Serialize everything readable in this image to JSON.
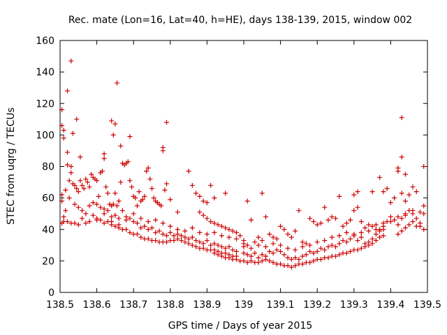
{
  "chart_data": {
    "type": "scatter",
    "title": "Rec. mate (Lon=16, Lat=40, h=HE), days 138-139, 2015, window 002",
    "xlabel": "GPS time / Days of year 2015",
    "ylabel": "STEC from uqrg / TECUs",
    "xlim": [
      138.5,
      139.5
    ],
    "ylim": [
      0,
      160
    ],
    "x_ticks": [
      "138.5",
      "138.6",
      "138.7",
      "138.8",
      "138.9",
      "139",
      "139.1",
      "139.2",
      "139.3",
      "139.4",
      "139.5"
    ],
    "y_ticks": [
      "0",
      "20",
      "40",
      "60",
      "80",
      "100",
      "120",
      "140",
      "160"
    ],
    "grid": false,
    "marker": "+",
    "color": "#cc0000",
    "points": [
      [
        138.505,
        116
      ],
      [
        138.505,
        106
      ],
      [
        138.51,
        103
      ],
      [
        138.51,
        98
      ],
      [
        138.52,
        128
      ],
      [
        138.53,
        147
      ],
      [
        138.535,
        101
      ],
      [
        138.545,
        110
      ],
      [
        138.555,
        86
      ],
      [
        138.64,
        109
      ],
      [
        138.645,
        100
      ],
      [
        138.65,
        107
      ],
      [
        138.655,
        133
      ],
      [
        138.665,
        93
      ],
      [
        138.69,
        99
      ],
      [
        138.78,
        92
      ],
      [
        138.78,
        90
      ],
      [
        138.79,
        108
      ],
      [
        139.43,
        111
      ],
      [
        139.43,
        86
      ],
      [
        139.44,
        75
      ],
      [
        139.49,
        80
      ],
      [
        138.505,
        62
      ],
      [
        138.505,
        58
      ],
      [
        138.51,
        45
      ],
      [
        138.515,
        65
      ],
      [
        138.515,
        52
      ],
      [
        138.52,
        89
      ],
      [
        138.52,
        81
      ],
      [
        138.525,
        71
      ],
      [
        138.525,
        60
      ],
      [
        138.53,
        80
      ],
      [
        138.53,
        76
      ],
      [
        138.535,
        69
      ],
      [
        138.54,
        68
      ],
      [
        138.545,
        66
      ],
      [
        138.55,
        64
      ],
      [
        138.555,
        71
      ],
      [
        138.56,
        68
      ],
      [
        138.565,
        66
      ],
      [
        138.57,
        72
      ],
      [
        138.575,
        70
      ],
      [
        138.58,
        67
      ],
      [
        138.585,
        75
      ],
      [
        138.59,
        73
      ],
      [
        138.595,
        72
      ],
      [
        138.6,
        71
      ],
      [
        138.605,
        61
      ],
      [
        138.61,
        76
      ],
      [
        138.615,
        77
      ],
      [
        138.62,
        88
      ],
      [
        138.62,
        85
      ],
      [
        138.625,
        67
      ],
      [
        138.63,
        63
      ],
      [
        138.635,
        56
      ],
      [
        138.64,
        55
      ],
      [
        138.645,
        56
      ],
      [
        138.65,
        63
      ],
      [
        138.655,
        55
      ],
      [
        138.66,
        58
      ],
      [
        138.665,
        70
      ],
      [
        138.67,
        82
      ],
      [
        138.675,
        81
      ],
      [
        138.68,
        82
      ],
      [
        138.685,
        83
      ],
      [
        138.69,
        71
      ],
      [
        138.695,
        67
      ],
      [
        138.7,
        61
      ],
      [
        138.705,
        60
      ],
      [
        138.71,
        55
      ],
      [
        138.715,
        64
      ],
      [
        138.72,
        58
      ],
      [
        138.725,
        59
      ],
      [
        138.73,
        61
      ],
      [
        138.735,
        77
      ],
      [
        138.74,
        79
      ],
      [
        138.745,
        72
      ],
      [
        138.75,
        66
      ],
      [
        138.755,
        60
      ],
      [
        138.76,
        58
      ],
      [
        138.765,
        57
      ],
      [
        138.77,
        56
      ],
      [
        138.775,
        55
      ],
      [
        138.785,
        65
      ],
      [
        138.79,
        69
      ],
      [
        138.8,
        59
      ],
      [
        138.82,
        51
      ],
      [
        138.85,
        77
      ],
      [
        138.86,
        68
      ],
      [
        138.87,
        63
      ],
      [
        138.88,
        61
      ],
      [
        138.89,
        58
      ],
      [
        138.9,
        57
      ],
      [
        138.91,
        68
      ],
      [
        138.92,
        60
      ],
      [
        138.95,
        63
      ],
      [
        139.01,
        58
      ],
      [
        139.05,
        63
      ],
      [
        139.3,
        62
      ],
      [
        139.31,
        64
      ],
      [
        139.35,
        64
      ],
      [
        139.37,
        73
      ],
      [
        139.38,
        64
      ],
      [
        139.39,
        66
      ],
      [
        139.4,
        57
      ],
      [
        139.41,
        60
      ],
      [
        139.42,
        79
      ],
      [
        139.42,
        77
      ],
      [
        139.43,
        63
      ],
      [
        139.44,
        58
      ],
      [
        139.45,
        62
      ],
      [
        139.46,
        67
      ],
      [
        139.47,
        64
      ],
      [
        139.48,
        51
      ],
      [
        139.49,
        55
      ],
      [
        138.505,
        44
      ],
      [
        138.51,
        48
      ],
      [
        138.52,
        45
      ],
      [
        138.53,
        44
      ],
      [
        138.54,
        44
      ],
      [
        138.55,
        43
      ],
      [
        138.56,
        47
      ],
      [
        138.57,
        44
      ],
      [
        138.58,
        45
      ],
      [
        138.59,
        49
      ],
      [
        138.6,
        47
      ],
      [
        138.61,
        46
      ],
      [
        138.62,
        53
      ],
      [
        138.63,
        45
      ],
      [
        138.64,
        43
      ],
      [
        138.65,
        42
      ],
      [
        138.66,
        41
      ],
      [
        138.67,
        40
      ],
      [
        138.68,
        40
      ],
      [
        138.69,
        38
      ],
      [
        138.7,
        37
      ],
      [
        138.71,
        37
      ],
      [
        138.72,
        35
      ],
      [
        138.73,
        34
      ],
      [
        138.74,
        34
      ],
      [
        138.75,
        33
      ],
      [
        138.76,
        33
      ],
      [
        138.77,
        32
      ],
      [
        138.78,
        32
      ],
      [
        138.79,
        32
      ],
      [
        138.8,
        33
      ],
      [
        138.81,
        33
      ],
      [
        138.82,
        34
      ],
      [
        138.83,
        33
      ],
      [
        138.84,
        32
      ],
      [
        138.85,
        31
      ],
      [
        138.86,
        30
      ],
      [
        138.87,
        29
      ],
      [
        138.88,
        28
      ],
      [
        138.89,
        28
      ],
      [
        138.9,
        27
      ],
      [
        138.91,
        27
      ],
      [
        138.92,
        27
      ],
      [
        138.93,
        26
      ],
      [
        138.94,
        25
      ],
      [
        138.95,
        25
      ],
      [
        138.96,
        24
      ],
      [
        138.97,
        23
      ],
      [
        138.98,
        23
      ],
      [
        138.54,
        56
      ],
      [
        138.55,
        54
      ],
      [
        138.56,
        52
      ],
      [
        138.57,
        50
      ],
      [
        138.58,
        55
      ],
      [
        138.59,
        57
      ],
      [
        138.6,
        56
      ],
      [
        138.61,
        54
      ],
      [
        138.62,
        50
      ],
      [
        138.63,
        52
      ],
      [
        138.64,
        48
      ],
      [
        138.65,
        49
      ],
      [
        138.66,
        47
      ],
      [
        138.67,
        52
      ],
      [
        138.68,
        46
      ],
      [
        138.69,
        47
      ],
      [
        138.7,
        45
      ],
      [
        138.71,
        44
      ],
      [
        138.72,
        41
      ],
      [
        138.73,
        42
      ],
      [
        138.74,
        40
      ],
      [
        138.75,
        41
      ],
      [
        138.76,
        38
      ],
      [
        138.77,
        39
      ],
      [
        138.78,
        37
      ],
      [
        138.79,
        36
      ],
      [
        138.8,
        38
      ],
      [
        138.81,
        36
      ],
      [
        138.82,
        37
      ],
      [
        138.83,
        36
      ],
      [
        138.84,
        35
      ],
      [
        138.85,
        34
      ],
      [
        138.86,
        35
      ],
      [
        138.87,
        33
      ],
      [
        138.88,
        32
      ],
      [
        138.89,
        31
      ],
      [
        138.9,
        33
      ],
      [
        138.91,
        30
      ],
      [
        138.92,
        31
      ],
      [
        138.93,
        30
      ],
      [
        138.94,
        29
      ],
      [
        138.95,
        28
      ],
      [
        138.96,
        29
      ],
      [
        138.97,
        27
      ],
      [
        138.98,
        26
      ],
      [
        138.6,
        46
      ],
      [
        138.62,
        44
      ],
      [
        138.64,
        45
      ],
      [
        138.66,
        43
      ],
      [
        138.68,
        48
      ],
      [
        138.7,
        50
      ],
      [
        138.72,
        47
      ],
      [
        138.74,
        45
      ],
      [
        138.76,
        46
      ],
      [
        138.78,
        44
      ],
      [
        138.8,
        42
      ],
      [
        138.82,
        40
      ],
      [
        138.84,
        39
      ],
      [
        138.86,
        41
      ],
      [
        138.88,
        38
      ],
      [
        138.9,
        37
      ],
      [
        138.92,
        38
      ],
      [
        138.94,
        36
      ],
      [
        138.96,
        35
      ],
      [
        138.98,
        34
      ],
      [
        139.0,
        33
      ],
      [
        138.88,
        51
      ],
      [
        138.89,
        49
      ],
      [
        138.9,
        47
      ],
      [
        138.91,
        45
      ],
      [
        138.92,
        44
      ],
      [
        138.93,
        43
      ],
      [
        138.94,
        42
      ],
      [
        138.95,
        41
      ],
      [
        138.96,
        40
      ],
      [
        138.97,
        39
      ],
      [
        138.98,
        38
      ],
      [
        138.99,
        36
      ],
      [
        139.0,
        31
      ],
      [
        139.01,
        30
      ],
      [
        139.02,
        46
      ],
      [
        139.03,
        32
      ],
      [
        139.04,
        35
      ],
      [
        139.05,
        33
      ],
      [
        139.06,
        48
      ],
      [
        139.07,
        37
      ],
      [
        139.08,
        35
      ],
      [
        139.09,
        34
      ],
      [
        139.1,
        42
      ],
      [
        139.11,
        40
      ],
      [
        139.12,
        37
      ],
      [
        139.13,
        35
      ],
      [
        139.14,
        39
      ],
      [
        139.15,
        52
      ],
      [
        139.16,
        32
      ],
      [
        139.17,
        31
      ],
      [
        139.18,
        47
      ],
      [
        139.19,
        45
      ],
      [
        139.2,
        43
      ],
      [
        139.21,
        44
      ],
      [
        139.22,
        54
      ],
      [
        139.23,
        46
      ],
      [
        139.24,
        48
      ],
      [
        139.25,
        47
      ],
      [
        139.26,
        61
      ],
      [
        139.27,
        42
      ],
      [
        139.28,
        44
      ],
      [
        139.29,
        46
      ],
      [
        139.3,
        52
      ],
      [
        139.31,
        54
      ],
      [
        139.32,
        45
      ],
      [
        139.33,
        41
      ],
      [
        139.34,
        43
      ],
      [
        139.35,
        42
      ],
      [
        139.36,
        40
      ],
      [
        139.37,
        39
      ],
      [
        139.38,
        42
      ],
      [
        139.39,
        45
      ],
      [
        139.4,
        48
      ],
      [
        139.41,
        46
      ],
      [
        139.42,
        43
      ],
      [
        139.43,
        47
      ],
      [
        139.44,
        49
      ],
      [
        139.45,
        52
      ],
      [
        139.46,
        50
      ],
      [
        139.47,
        47
      ],
      [
        139.48,
        42
      ],
      [
        139.49,
        40
      ],
      [
        139.0,
        20
      ],
      [
        139.01,
        19
      ],
      [
        139.02,
        20
      ],
      [
        139.03,
        19
      ],
      [
        139.04,
        19
      ],
      [
        139.05,
        20
      ],
      [
        139.06,
        21
      ],
      [
        139.07,
        20
      ],
      [
        139.08,
        19
      ],
      [
        139.09,
        18
      ],
      [
        139.1,
        18
      ],
      [
        139.11,
        17
      ],
      [
        139.12,
        17
      ],
      [
        139.13,
        16
      ],
      [
        139.14,
        17
      ],
      [
        139.15,
        18
      ],
      [
        139.16,
        18
      ],
      [
        139.17,
        19
      ],
      [
        139.18,
        19
      ],
      [
        139.19,
        20
      ],
      [
        139.2,
        21
      ],
      [
        139.21,
        21
      ],
      [
        139.22,
        22
      ],
      [
        139.23,
        22
      ],
      [
        139.24,
        23
      ],
      [
        139.25,
        23
      ],
      [
        139.26,
        24
      ],
      [
        139.27,
        25
      ],
      [
        139.28,
        25
      ],
      [
        139.29,
        26
      ],
      [
        139.3,
        27
      ],
      [
        139.31,
        27
      ],
      [
        139.32,
        28
      ],
      [
        139.33,
        29
      ],
      [
        139.34,
        30
      ],
      [
        139.35,
        31
      ],
      [
        139.36,
        33
      ],
      [
        139.37,
        35
      ],
      [
        139.38,
        36
      ],
      [
        139.0,
        25
      ],
      [
        139.01,
        24
      ],
      [
        139.02,
        23
      ],
      [
        139.03,
        25
      ],
      [
        139.04,
        22
      ],
      [
        139.05,
        24
      ],
      [
        139.06,
        23
      ],
      [
        139.07,
        26
      ],
      [
        139.08,
        25
      ],
      [
        139.09,
        27
      ],
      [
        139.1,
        26
      ],
      [
        139.11,
        24
      ],
      [
        139.12,
        22
      ],
      [
        139.13,
        21
      ],
      [
        139.14,
        22
      ],
      [
        139.15,
        21
      ],
      [
        139.16,
        23
      ],
      [
        139.17,
        24
      ],
      [
        139.18,
        26
      ],
      [
        139.19,
        25
      ],
      [
        139.2,
        26
      ],
      [
        139.21,
        28
      ],
      [
        139.22,
        27
      ],
      [
        139.23,
        29
      ],
      [
        139.24,
        30
      ],
      [
        139.25,
        29
      ],
      [
        139.26,
        31
      ],
      [
        139.27,
        33
      ],
      [
        139.28,
        32
      ],
      [
        139.29,
        34
      ],
      [
        139.3,
        36
      ],
      [
        139.31,
        33
      ],
      [
        139.32,
        35
      ],
      [
        139.33,
        31
      ],
      [
        139.34,
        32
      ],
      [
        139.35,
        34
      ],
      [
        139.36,
        37
      ],
      [
        139.37,
        40
      ],
      [
        139.38,
        40
      ],
      [
        139.0,
        29
      ],
      [
        139.02,
        28
      ],
      [
        139.04,
        30
      ],
      [
        139.06,
        29
      ],
      [
        139.08,
        31
      ],
      [
        139.1,
        30
      ],
      [
        139.12,
        28
      ],
      [
        139.14,
        27
      ],
      [
        139.16,
        29
      ],
      [
        139.18,
        30
      ],
      [
        139.2,
        32
      ],
      [
        139.22,
        33
      ],
      [
        139.24,
        35
      ],
      [
        139.26,
        36
      ],
      [
        139.28,
        38
      ],
      [
        139.3,
        37
      ],
      [
        139.32,
        38
      ],
      [
        139.34,
        39
      ],
      [
        139.36,
        43
      ],
      [
        139.38,
        44
      ],
      [
        139.4,
        45
      ],
      [
        139.42,
        48
      ],
      [
        139.44,
        50
      ],
      [
        139.46,
        52
      ],
      [
        139.48,
        44
      ],
      [
        138.92,
        25
      ],
      [
        138.93,
        24
      ],
      [
        138.94,
        23
      ],
      [
        138.95,
        22
      ],
      [
        138.96,
        22
      ],
      [
        138.97,
        21
      ],
      [
        138.98,
        21
      ],
      [
        138.99,
        20
      ],
      [
        139.42,
        37
      ],
      [
        139.43,
        39
      ],
      [
        139.44,
        41
      ],
      [
        139.45,
        43
      ],
      [
        139.46,
        45
      ],
      [
        139.47,
        42
      ],
      [
        139.49,
        50
      ]
    ]
  }
}
